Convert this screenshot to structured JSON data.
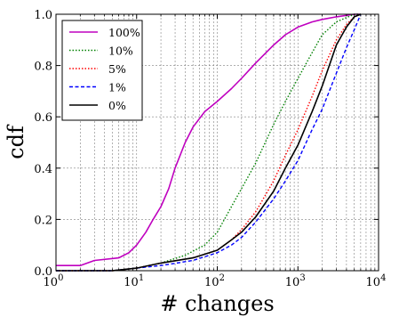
{
  "chart_data": {
    "type": "line",
    "xlabel": "# changes",
    "ylabel": "cdf",
    "xscale": "log",
    "xlim": [
      1,
      10000
    ],
    "ylim": [
      0,
      1
    ],
    "x_ticks": [
      1,
      10,
      100,
      1000,
      10000
    ],
    "x_tick_labels": [
      {
        "base": "10",
        "exp": "0"
      },
      {
        "base": "10",
        "exp": "1"
      },
      {
        "base": "10",
        "exp": "2"
      },
      {
        "base": "10",
        "exp": "3"
      },
      {
        "base": "10",
        "exp": "4"
      }
    ],
    "y_ticks": [
      0.0,
      0.2,
      0.4,
      0.6,
      0.8,
      1.0
    ],
    "y_tick_labels": [
      "0.0",
      "0.2",
      "0.4",
      "0.6",
      "0.8",
      "1.0"
    ],
    "grid": true,
    "legend_position": "top-left",
    "series": [
      {
        "name": "100%",
        "color": "#bf00bf",
        "dash": "solid",
        "points": [
          [
            1,
            0.02
          ],
          [
            2,
            0.02
          ],
          [
            3,
            0.04
          ],
          [
            6,
            0.05
          ],
          [
            8,
            0.07
          ],
          [
            10,
            0.1
          ],
          [
            13,
            0.15
          ],
          [
            16,
            0.2
          ],
          [
            20,
            0.25
          ],
          [
            25,
            0.32
          ],
          [
            30,
            0.4
          ],
          [
            40,
            0.5
          ],
          [
            50,
            0.56
          ],
          [
            70,
            0.62
          ],
          [
            100,
            0.66
          ],
          [
            150,
            0.71
          ],
          [
            200,
            0.75
          ],
          [
            300,
            0.81
          ],
          [
            500,
            0.88
          ],
          [
            700,
            0.92
          ],
          [
            1000,
            0.95
          ],
          [
            1500,
            0.97
          ],
          [
            2000,
            0.98
          ],
          [
            3000,
            0.99
          ],
          [
            5000,
            1.0
          ],
          [
            6000,
            1.0
          ]
        ]
      },
      {
        "name": "10%",
        "color": "#008000",
        "dash": "dotted",
        "points": [
          [
            1,
            0.0
          ],
          [
            5,
            0.0
          ],
          [
            10,
            0.01
          ],
          [
            20,
            0.03
          ],
          [
            40,
            0.06
          ],
          [
            70,
            0.1
          ],
          [
            100,
            0.15
          ],
          [
            150,
            0.25
          ],
          [
            200,
            0.32
          ],
          [
            300,
            0.42
          ],
          [
            500,
            0.57
          ],
          [
            700,
            0.66
          ],
          [
            1000,
            0.75
          ],
          [
            1500,
            0.85
          ],
          [
            2000,
            0.92
          ],
          [
            3000,
            0.97
          ],
          [
            5000,
            1.0
          ],
          [
            6000,
            1.0
          ]
        ]
      },
      {
        "name": "5%",
        "color": "#ff0000",
        "dash": "dotted",
        "points": [
          [
            1,
            0.0
          ],
          [
            5,
            0.0
          ],
          [
            10,
            0.01
          ],
          [
            20,
            0.03
          ],
          [
            50,
            0.05
          ],
          [
            100,
            0.08
          ],
          [
            150,
            0.12
          ],
          [
            200,
            0.16
          ],
          [
            300,
            0.23
          ],
          [
            500,
            0.35
          ],
          [
            700,
            0.45
          ],
          [
            1000,
            0.55
          ],
          [
            1500,
            0.68
          ],
          [
            2000,
            0.78
          ],
          [
            3000,
            0.9
          ],
          [
            4000,
            0.96
          ],
          [
            5000,
            0.99
          ],
          [
            6000,
            1.0
          ]
        ]
      },
      {
        "name": "1%",
        "color": "#0000ff",
        "dash": "dashed",
        "points": [
          [
            1,
            0.0
          ],
          [
            5,
            0.0
          ],
          [
            10,
            0.01
          ],
          [
            20,
            0.02
          ],
          [
            50,
            0.04
          ],
          [
            100,
            0.07
          ],
          [
            150,
            0.1
          ],
          [
            200,
            0.13
          ],
          [
            300,
            0.19
          ],
          [
            500,
            0.28
          ],
          [
            700,
            0.35
          ],
          [
            1000,
            0.43
          ],
          [
            1500,
            0.55
          ],
          [
            2000,
            0.63
          ],
          [
            3000,
            0.77
          ],
          [
            4000,
            0.87
          ],
          [
            5000,
            0.94
          ],
          [
            6000,
            1.0
          ]
        ]
      },
      {
        "name": "0%",
        "color": "#000000",
        "dash": "solid",
        "points": [
          [
            1,
            0.0
          ],
          [
            5,
            0.0
          ],
          [
            10,
            0.01
          ],
          [
            20,
            0.03
          ],
          [
            50,
            0.05
          ],
          [
            100,
            0.08
          ],
          [
            150,
            0.12
          ],
          [
            200,
            0.15
          ],
          [
            300,
            0.21
          ],
          [
            500,
            0.31
          ],
          [
            700,
            0.4
          ],
          [
            1000,
            0.49
          ],
          [
            1500,
            0.62
          ],
          [
            2000,
            0.72
          ],
          [
            3000,
            0.88
          ],
          [
            4000,
            0.95
          ],
          [
            5000,
            0.99
          ],
          [
            6000,
            1.0
          ]
        ]
      }
    ]
  }
}
